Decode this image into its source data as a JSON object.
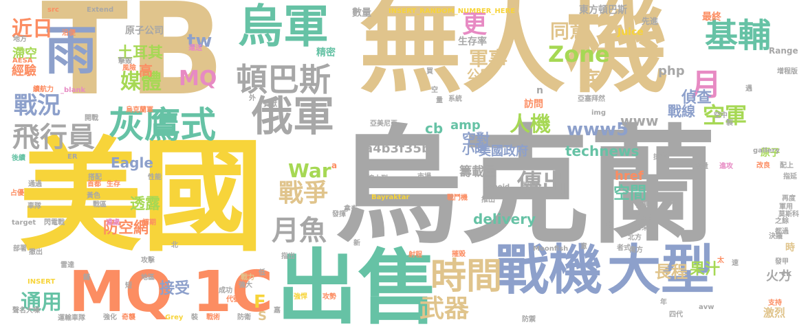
{
  "palette": {
    "tan": "#e0c48c",
    "gray": "#a7a7a7",
    "yellow": "#f7d43a",
    "teal": "#66c2a5",
    "slate": "#8da0cb",
    "green": "#a6d854",
    "orange": "#fc8d62",
    "pink": "#e78ac3",
    "background": "#ffffff"
  },
  "words": [
    "無人機",
    "烏克蘭",
    "TB",
    "美國",
    "出售",
    "戰機",
    "大型",
    "MQ 1C",
    "烏軍",
    "俄軍",
    "雨",
    "灰鷹式",
    "頓巴斯",
    "時間",
    "戰爭",
    "月魚",
    "基輔",
    "更",
    "同意",
    "軍事",
    "Zone",
    "底",
    "月",
    "人機",
    "傳出",
    "戰況",
    "飛行員",
    "近日",
    "土耳其",
    "媒體",
    "高",
    "MQ",
    "tw",
    "www5",
    "www",
    "空軍",
    "偵查",
    "戰線",
    "php",
    "公斤",
    "a4b3f35b",
    "War",
    "technews",
    "空對",
    "cb",
    "amp",
    "小時",
    "美國政府",
    "籌載量",
    "Eagle",
    "透露",
    "防空網",
    "delivery",
    "空間",
    "href",
    "長程",
    "果汁",
    "火力",
    "通用",
    "武器",
    "F",
    "S",
    "接受",
    "經驗",
    "滯空",
    "原子公司",
    "原子",
    "精密",
    "生存率",
    "數量",
    "東方頓巴斯",
    "最終",
    "先進",
    "Juice",
    "Range",
    "INSERT_RANDOM_NUMBER_HERE",
    "src",
    "Extend",
    "AESA",
    "地方",
    "沿便",
    "運送",
    "擊毀",
    "風險",
    "_blank",
    "續航力",
    "開戰",
    "烏克蘭軍",
    "首都",
    "生存",
    "性能",
    "外",
    "貢獻",
    "系統",
    "亞塞拜然",
    "亞美尼亞",
    "img",
    "訪問",
    "n",
    "INSERT",
    "a",
    "zoneid",
    "市場",
    "推出",
    "Bayraktar",
    "戰鬥機",
    "採購",
    "Moonfish",
    "車隊",
    "戰區",
    "遠處",
    "初期",
    "target",
    "閃電戰",
    "部署",
    "撤出",
    "雷達",
    "攻擊",
    "鏈",
    "地區",
    "短",
    "成功",
    "代號",
    "強大",
    "戰力",
    "強悍",
    "攻勢",
    "射程",
    "摧毀",
    "聲名大噪",
    "運輸車隊",
    "強化",
    "奇襲",
    "Grey",
    "裝",
    "戰術",
    "防衛",
    "防禦",
    "四代",
    "年",
    "支持",
    "激烈",
    "時",
    "之餘",
    "決議",
    "都過",
    "後續",
    "ER",
    "通過",
    "占優",
    "指出",
    "發揮",
    "縮小到",
    "北方",
    "南方",
    "者式",
    "帶來",
    "補給",
    "偵測",
    "改良",
    "配上",
    "指延",
    "再度",
    "軍用",
    "莫斯科",
    "增程版",
    "掠奪",
    "考量",
    "進攻",
    "買",
    "空",
    "量",
    "搭配",
    "黃色",
    "北",
    "嘉",
    "低",
    "新",
    "gallery",
    "avw",
    "ck",
    "太",
    "速",
    "發甲",
    "遇",
    "名",
    "意",
    "空中",
    "拿去",
    "製"
  ]
}
